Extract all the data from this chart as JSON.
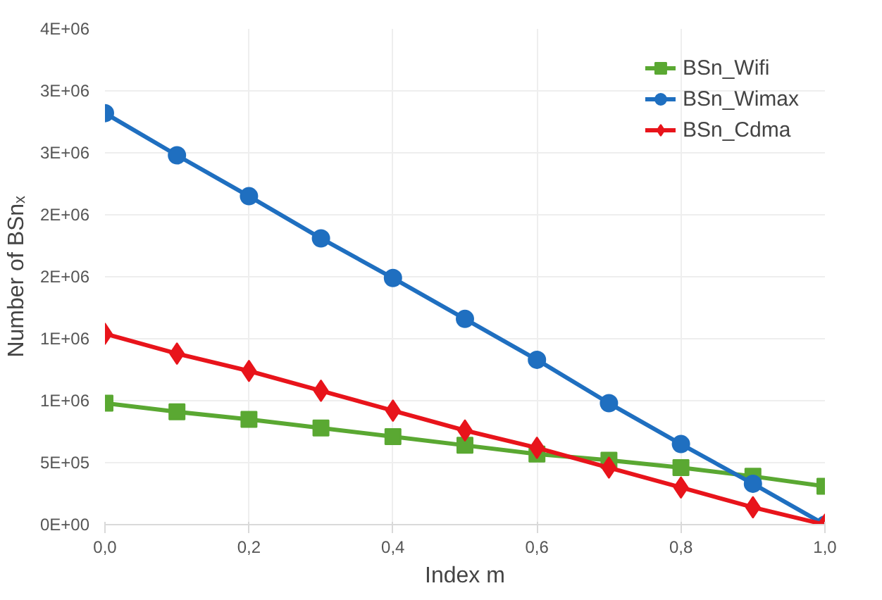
{
  "chart_data": {
    "type": "line",
    "xlabel": "Index m",
    "ylabel": "Number of BSnₓ",
    "x": [
      0,
      0.1,
      0.2,
      0.3,
      0.4,
      0.5,
      0.6,
      0.7,
      0.8,
      0.9,
      1.0
    ],
    "series": [
      {
        "name": "BSn_Wifi",
        "color": "#5aa832",
        "marker": "square",
        "values": [
          980000,
          910000,
          850000,
          780000,
          710000,
          640000,
          570000,
          520000,
          460000,
          390000,
          310000
        ]
      },
      {
        "name": "BSn_Wimax",
        "color": "#1f6fc0",
        "marker": "circle",
        "values": [
          3320000,
          2980000,
          2650000,
          2310000,
          1990000,
          1660000,
          1330000,
          980000,
          650000,
          330000,
          0
        ]
      },
      {
        "name": "BSn_Cdma",
        "color": "#e8141b",
        "marker": "diamond",
        "values": [
          1540000,
          1380000,
          1240000,
          1080000,
          920000,
          760000,
          620000,
          460000,
          300000,
          140000,
          0
        ]
      }
    ],
    "xlim": [
      0,
      1
    ],
    "ylim": [
      0,
      4000000
    ],
    "xticks": [
      {
        "value": 0,
        "label": "0,0"
      },
      {
        "value": 0.2,
        "label": "0,2"
      },
      {
        "value": 0.4,
        "label": "0,4"
      },
      {
        "value": 0.6,
        "label": "0,6"
      },
      {
        "value": 0.8,
        "label": "0,8"
      },
      {
        "value": 1.0,
        "label": "1,0"
      }
    ],
    "yticks": [
      {
        "value": 0,
        "label": "0E+00"
      },
      {
        "value": 500000,
        "label": "5E+05"
      },
      {
        "value": 1000000,
        "label": "1E+06"
      },
      {
        "value": 1500000,
        "label": "1E+06"
      },
      {
        "value": 2000000,
        "label": "2E+06"
      },
      {
        "value": 2500000,
        "label": "2E+06"
      },
      {
        "value": 3000000,
        "label": "3E+06"
      },
      {
        "value": 3500000,
        "label": "3E+06"
      },
      {
        "value": 4000000,
        "label": "4E+06"
      }
    ],
    "grid": true,
    "legend": "top right",
    "line_style": "solid"
  }
}
